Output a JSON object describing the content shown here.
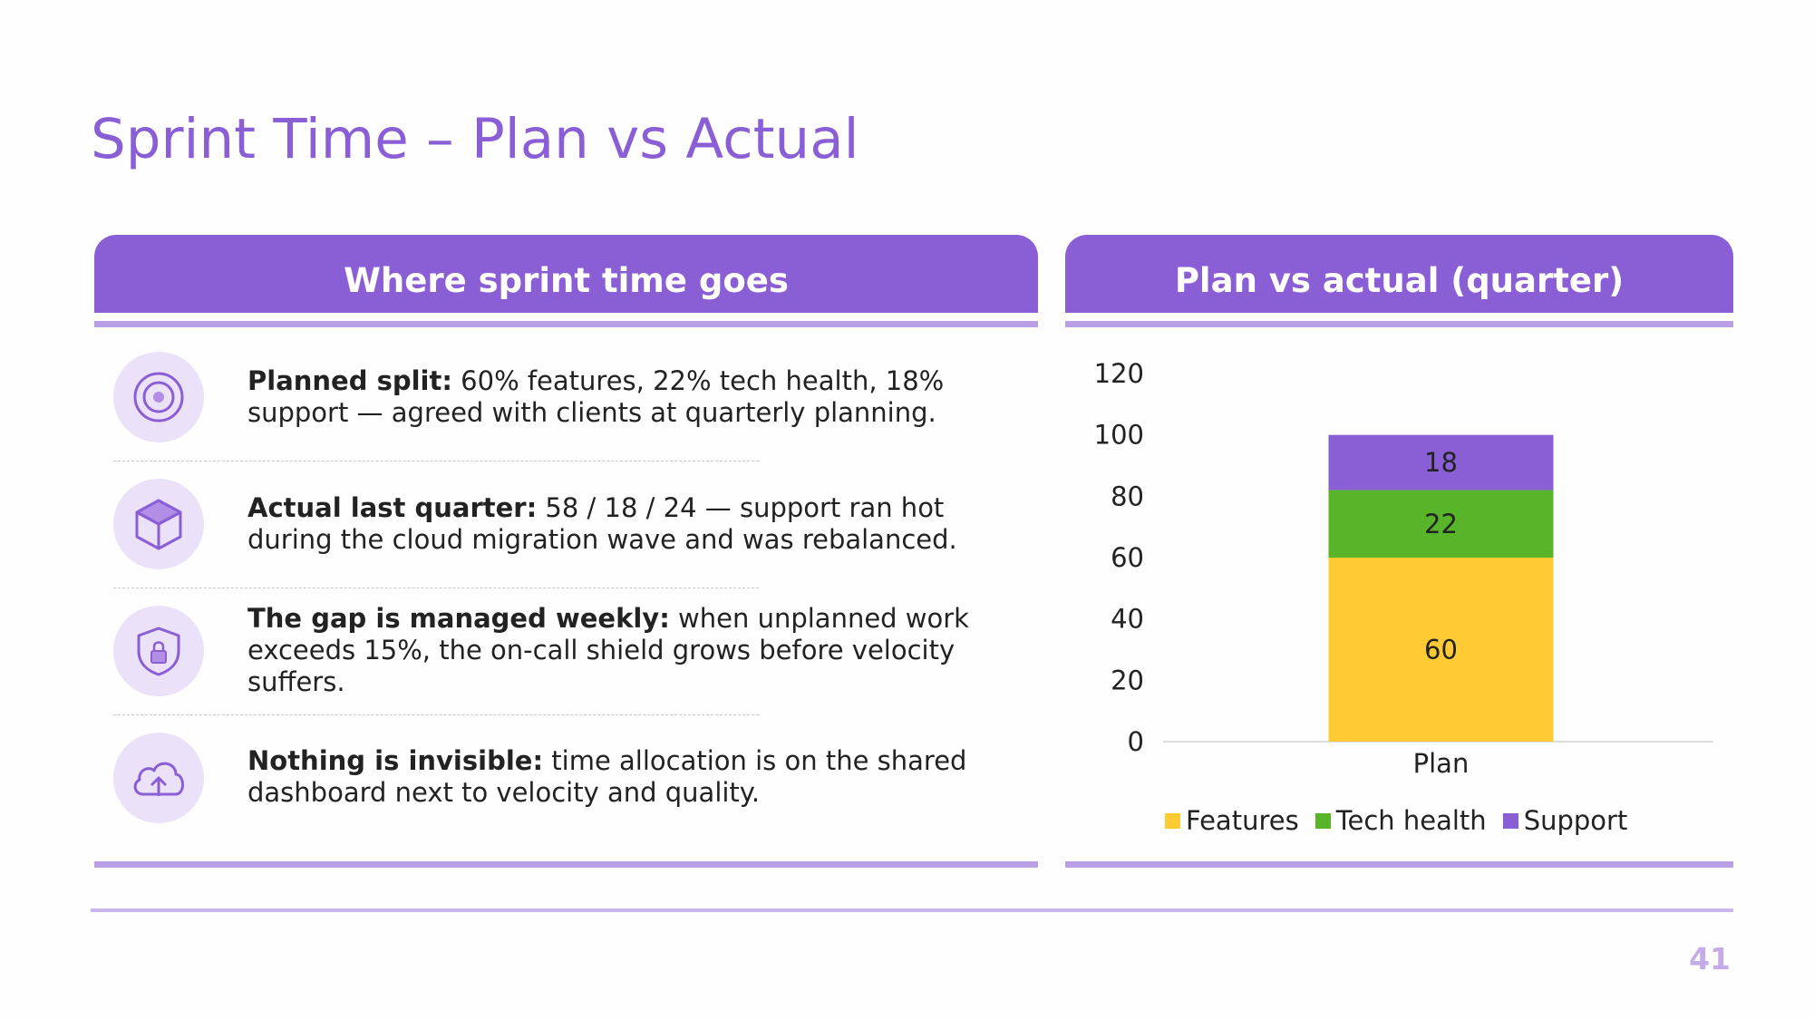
{
  "slide": {
    "title": "Sprint Time – Plan vs Actual",
    "page_number": "41"
  },
  "left_panel": {
    "header": "Where sprint time goes",
    "items": [
      {
        "icon": "target-icon",
        "bold": "Planned split:",
        "text": " 60% features, 22% tech health, 18% support — agreed with clients at quarterly planning."
      },
      {
        "icon": "cube-icon",
        "bold": "Actual last quarter:",
        "text": " 58 / 18 / 24 — support ran hot during the cloud migration wave and was rebalanced."
      },
      {
        "icon": "shield-lock-icon",
        "bold": "The gap is managed weekly:",
        "text": " when unplanned work exceeds 15%, the on-call shield grows before velocity suffers."
      },
      {
        "icon": "cloud-upload-icon",
        "bold": "Nothing is invisible:",
        "text": " time allocation is on the shared dashboard next to velocity and quality."
      }
    ]
  },
  "right_panel": {
    "header": "Plan vs actual (quarter)"
  },
  "colors": {
    "accent": "#8a5fd6",
    "features": "#ffca33",
    "tech_health": "#58b428",
    "support": "#8a5fd6"
  },
  "chart_data": {
    "type": "bar",
    "stacked": true,
    "categories": [
      "Plan"
    ],
    "series": [
      {
        "name": "Features",
        "values": [
          60
        ],
        "color": "#ffca33"
      },
      {
        "name": "Tech health",
        "values": [
          22
        ],
        "color": "#58b428"
      },
      {
        "name": "Support",
        "values": [
          18
        ],
        "color": "#8a5fd6"
      }
    ],
    "ylim": [
      0,
      120
    ],
    "yticks": [
      0,
      20,
      40,
      60,
      80,
      100,
      120
    ],
    "grid": false,
    "legend_position": "bottom"
  }
}
